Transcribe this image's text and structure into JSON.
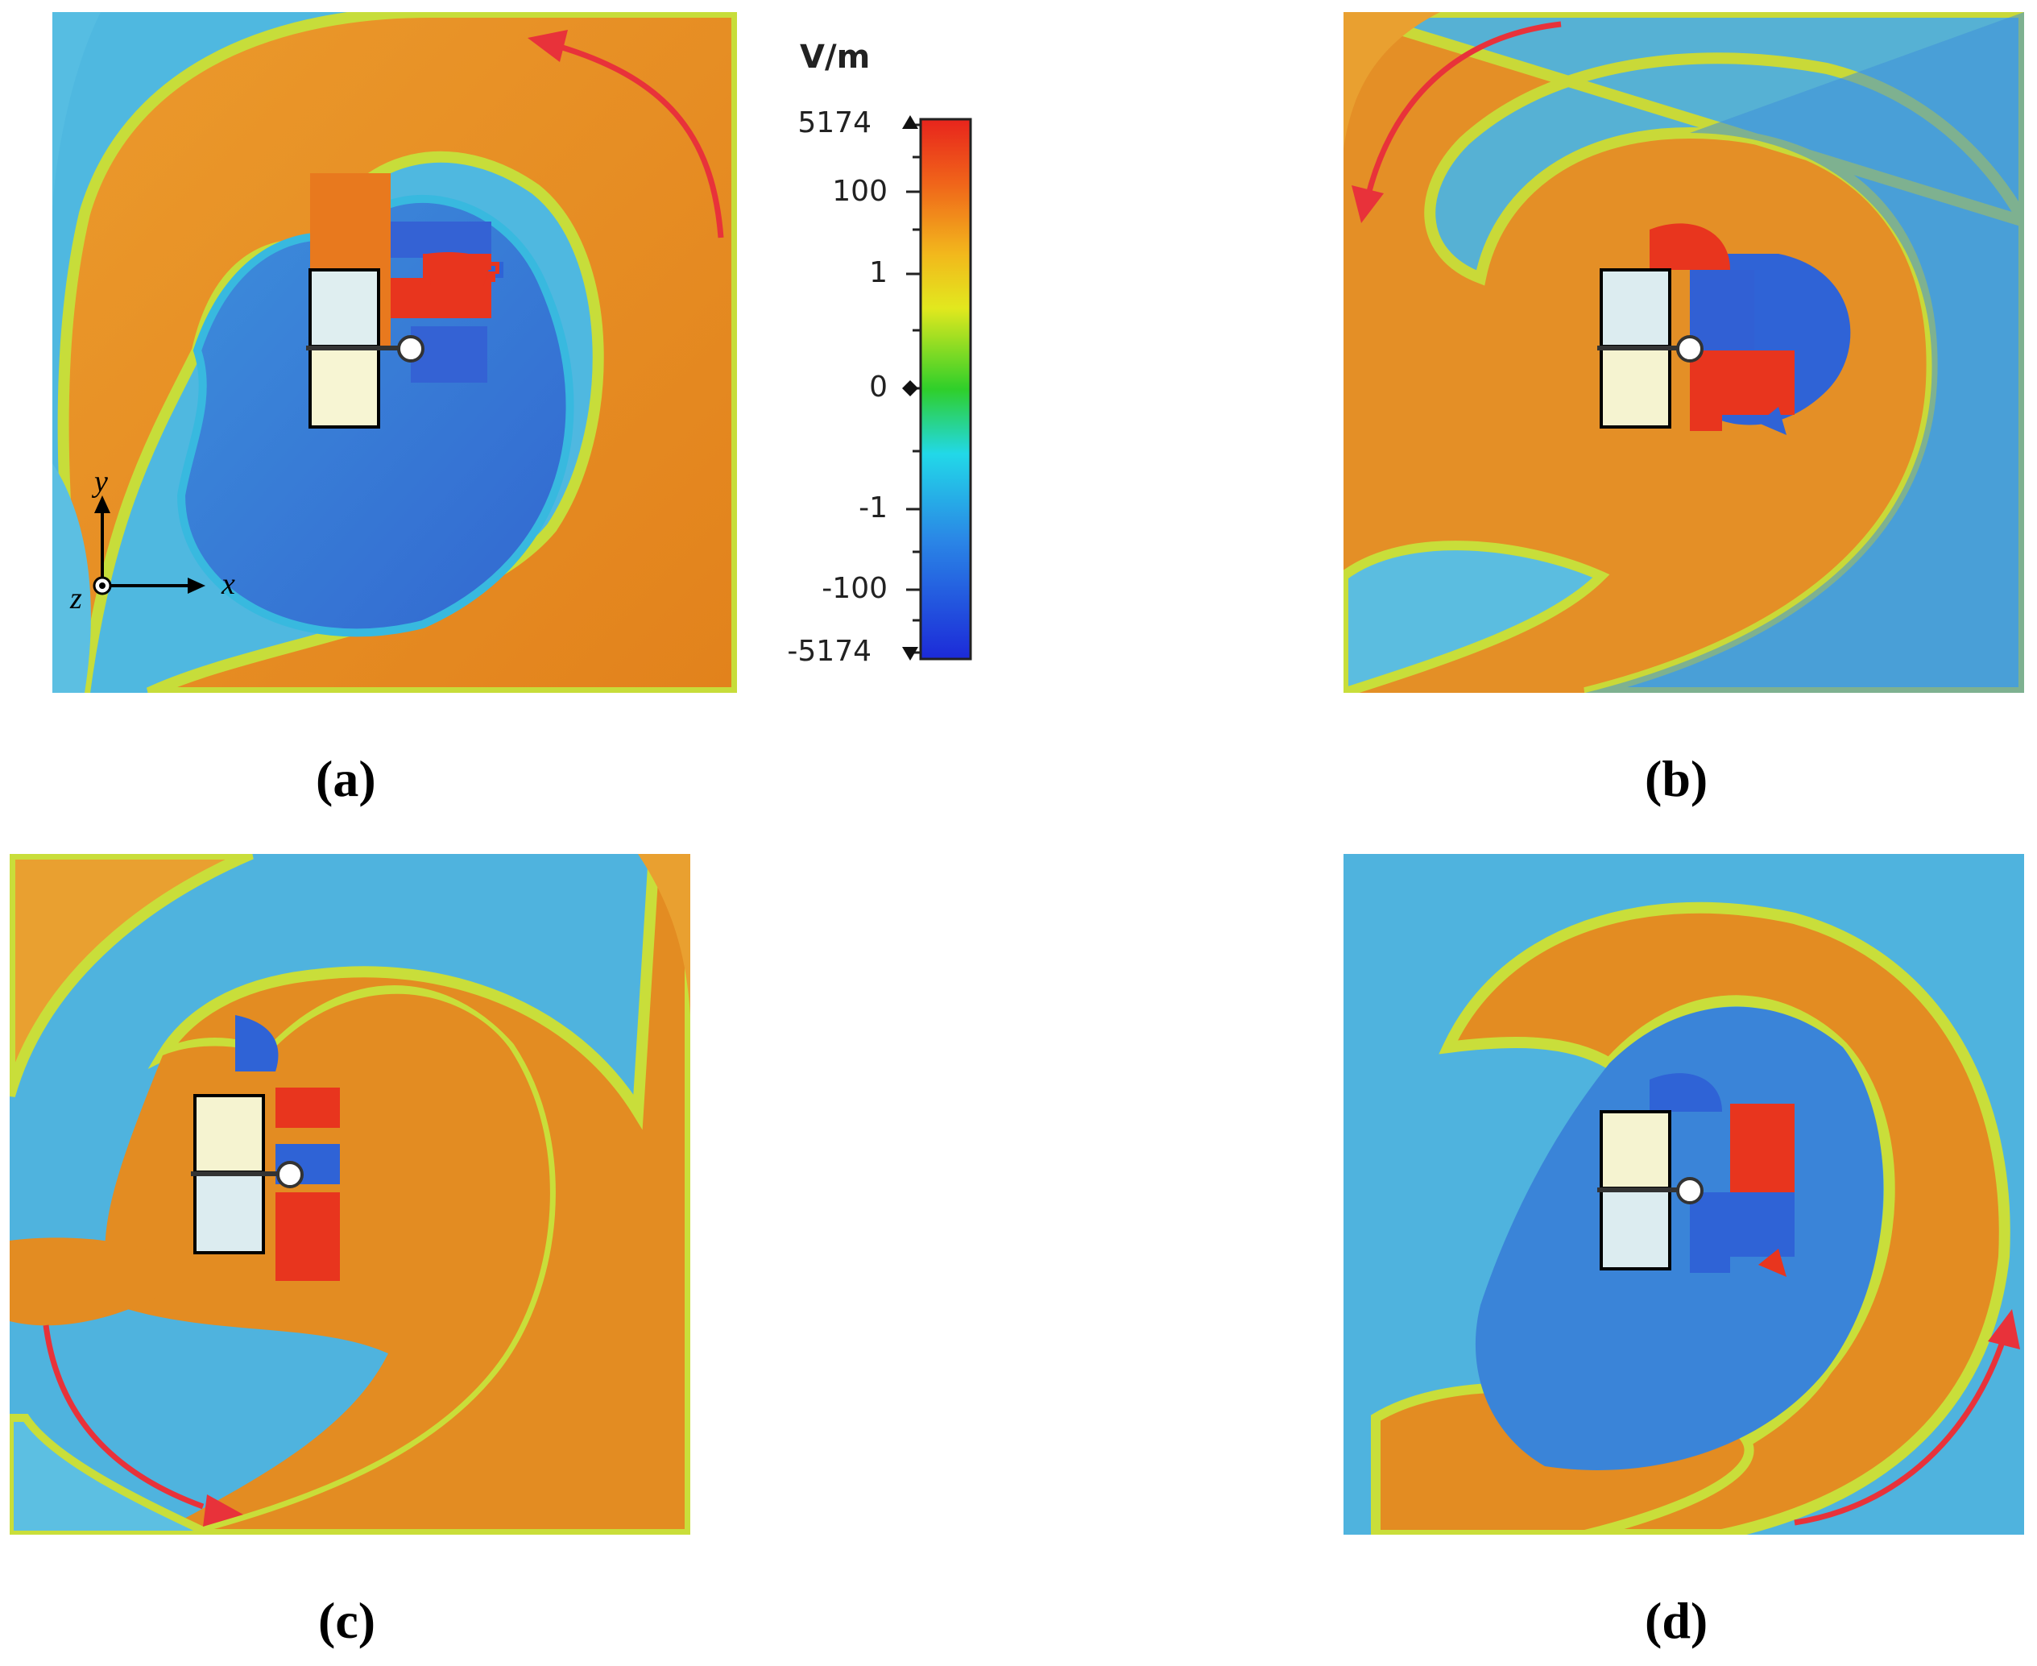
{
  "figure": {
    "panels": [
      {
        "id": "a",
        "caption": "(a)",
        "rotation": 0,
        "arrow": "top-right-ccw"
      },
      {
        "id": "b",
        "caption": "(b)",
        "rotation": 90,
        "arrow": "top-left-ccw"
      },
      {
        "id": "c",
        "caption": "(c)",
        "rotation": 180,
        "arrow": "bottom-left-ccw"
      },
      {
        "id": "d",
        "caption": "(d)",
        "rotation": 270,
        "arrow": "bottom-right-ccw"
      }
    ],
    "axes": {
      "x": "x",
      "y": "y",
      "z": "z"
    }
  },
  "colorbar": {
    "unit": "V/m",
    "ticks": [
      "5174",
      "100",
      "1",
      "0",
      "-1",
      "-100",
      "-5174"
    ],
    "colors": [
      "#e8241c",
      "#f07a1a",
      "#f2c21a",
      "#d8e81e",
      "#2fcf2a",
      "#22d8e8",
      "#2a86e6",
      "#1c2ad8"
    ]
  },
  "colors": {
    "orange": "#ea8f23",
    "blue": "#3a8fd8",
    "deep_blue": "#2f63d6",
    "yellow_green": "#c9de3a",
    "red": "#e8351e",
    "arrow": "#e8323a"
  }
}
